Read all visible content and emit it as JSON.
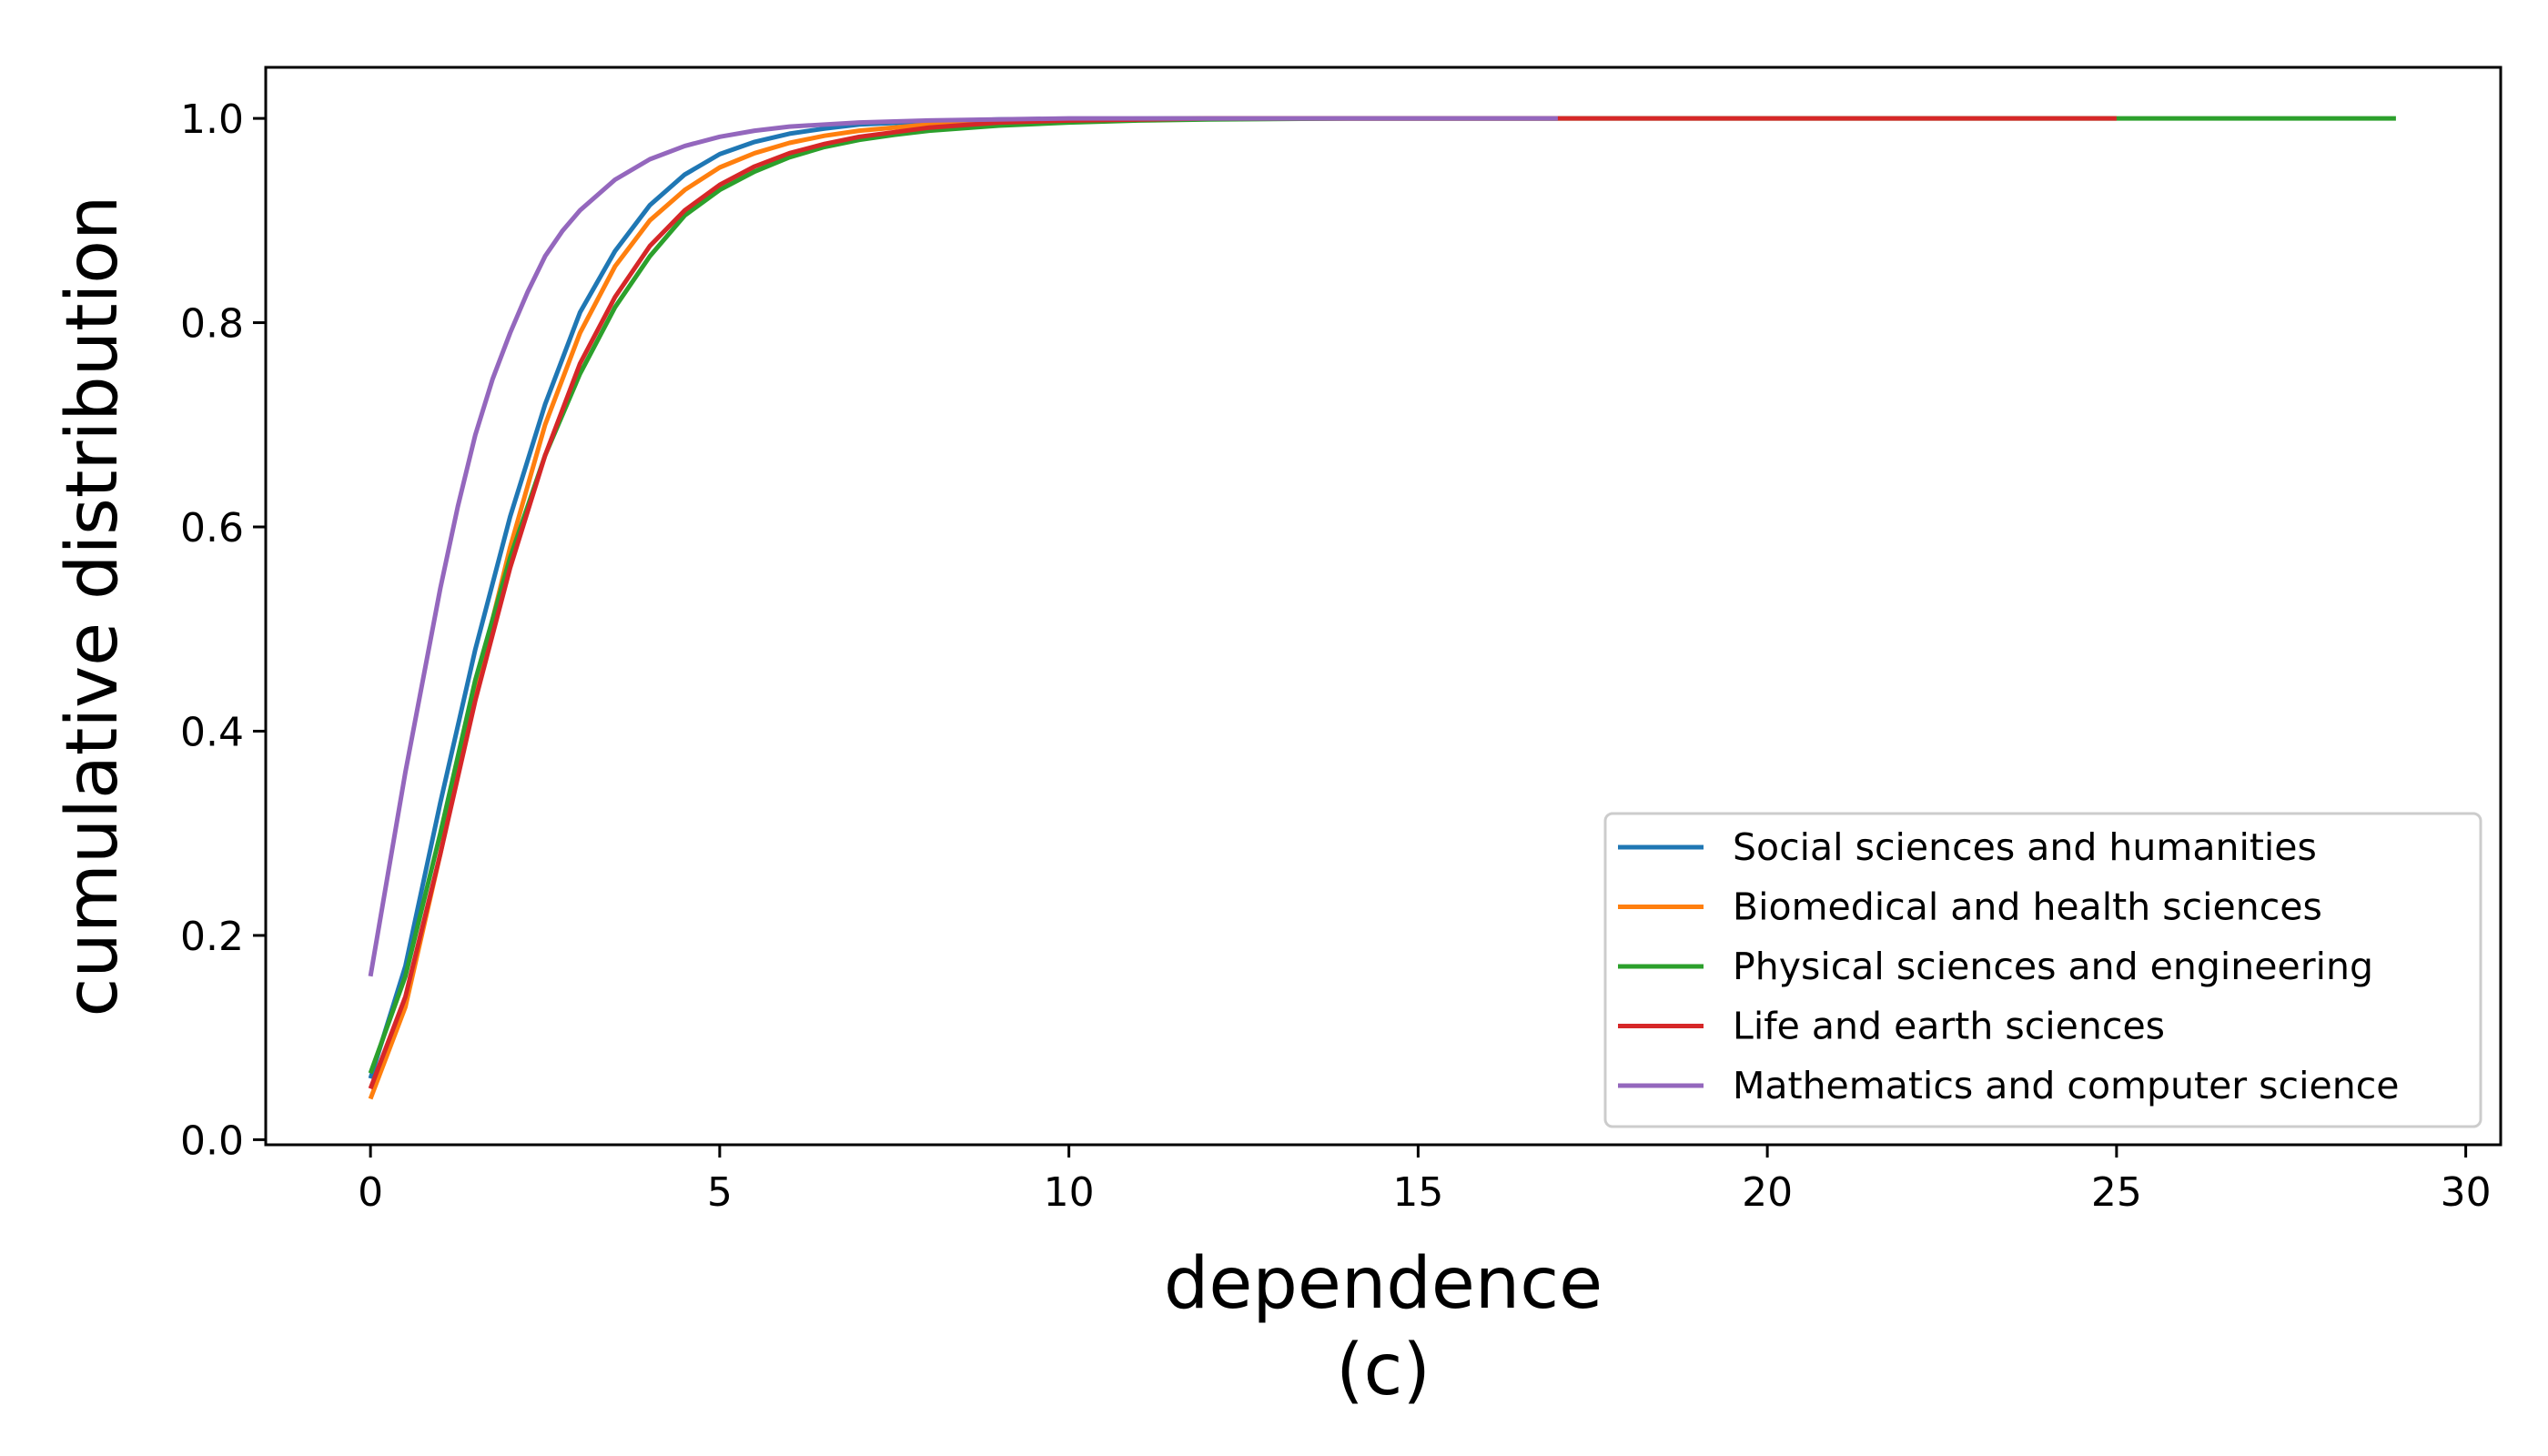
{
  "chart_data": {
    "type": "line",
    "xlabel": "dependence",
    "ylabel": "cumulative distribution",
    "caption": "(c)",
    "xlim": [
      -1.5,
      30.5
    ],
    "ylim": [
      -0.005,
      1.05
    ],
    "xticks": [
      0,
      5,
      10,
      15,
      20,
      25,
      30
    ],
    "xtick_labels": [
      "0",
      "5",
      "10",
      "15",
      "20",
      "25",
      "30"
    ],
    "yticks": [
      0.0,
      0.2,
      0.4,
      0.6,
      0.8,
      1.0
    ],
    "ytick_labels": [
      "0.0",
      "0.2",
      "0.4",
      "0.6",
      "0.8",
      "1.0"
    ],
    "grid": false,
    "legend_position": "lower-right",
    "series": [
      {
        "name": "Social sciences and humanities",
        "color": "#1f77b4",
        "x": [
          0,
          0.5,
          1,
          1.5,
          2,
          2.5,
          3,
          3.5,
          4,
          4.5,
          5,
          5.5,
          6,
          6.5,
          7,
          8,
          9,
          10,
          12,
          15,
          17
        ],
        "y": [
          0.06,
          0.17,
          0.33,
          0.48,
          0.61,
          0.72,
          0.81,
          0.87,
          0.915,
          0.945,
          0.965,
          0.977,
          0.985,
          0.99,
          0.994,
          0.997,
          0.999,
          0.9995,
          1.0,
          1.0,
          1.0
        ]
      },
      {
        "name": "Biomedical and health sciences",
        "color": "#ff7f0e",
        "x": [
          0,
          0.5,
          1,
          1.5,
          2,
          2.5,
          3,
          3.5,
          4,
          4.5,
          5,
          5.5,
          6,
          6.5,
          7,
          8,
          9,
          10,
          12,
          15,
          17
        ],
        "y": [
          0.04,
          0.13,
          0.28,
          0.44,
          0.58,
          0.7,
          0.79,
          0.855,
          0.9,
          0.93,
          0.952,
          0.966,
          0.976,
          0.983,
          0.988,
          0.994,
          0.997,
          0.999,
          1.0,
          1.0,
          1.0
        ]
      },
      {
        "name": "Physical sciences and engineering",
        "color": "#2ca02c",
        "x": [
          0,
          0.5,
          1,
          1.5,
          2,
          2.5,
          3,
          3.5,
          4,
          4.5,
          5,
          5.5,
          6,
          6.5,
          7,
          7.5,
          8,
          9,
          10,
          11,
          12,
          14,
          17,
          20,
          25,
          29
        ],
        "y": [
          0.065,
          0.16,
          0.3,
          0.45,
          0.57,
          0.67,
          0.75,
          0.815,
          0.865,
          0.905,
          0.93,
          0.948,
          0.962,
          0.972,
          0.979,
          0.984,
          0.988,
          0.993,
          0.996,
          0.998,
          0.999,
          1.0,
          1.0,
          1.0,
          1.0,
          1.0
        ]
      },
      {
        "name": "Life and earth sciences",
        "color": "#d62728",
        "x": [
          0,
          0.5,
          1,
          1.5,
          2,
          2.5,
          3,
          3.5,
          4,
          4.5,
          5,
          5.5,
          6,
          6.5,
          7,
          8,
          9,
          10,
          12,
          15,
          20,
          25
        ],
        "y": [
          0.05,
          0.14,
          0.28,
          0.43,
          0.56,
          0.67,
          0.76,
          0.825,
          0.875,
          0.91,
          0.935,
          0.953,
          0.966,
          0.975,
          0.982,
          0.991,
          0.996,
          0.998,
          1.0,
          1.0,
          1.0,
          1.0
        ]
      },
      {
        "name": "Mathematics and computer science",
        "color": "#9467bd",
        "x": [
          0,
          0.25,
          0.5,
          0.75,
          1,
          1.25,
          1.5,
          1.75,
          2,
          2.25,
          2.5,
          2.75,
          3,
          3.5,
          4,
          4.5,
          5,
          5.5,
          6,
          7,
          8,
          10,
          12,
          15,
          17
        ],
        "y": [
          0.16,
          0.26,
          0.36,
          0.45,
          0.54,
          0.62,
          0.69,
          0.745,
          0.79,
          0.83,
          0.865,
          0.89,
          0.91,
          0.94,
          0.96,
          0.973,
          0.982,
          0.988,
          0.992,
          0.996,
          0.998,
          1.0,
          1.0,
          1.0,
          1.0
        ]
      }
    ]
  }
}
